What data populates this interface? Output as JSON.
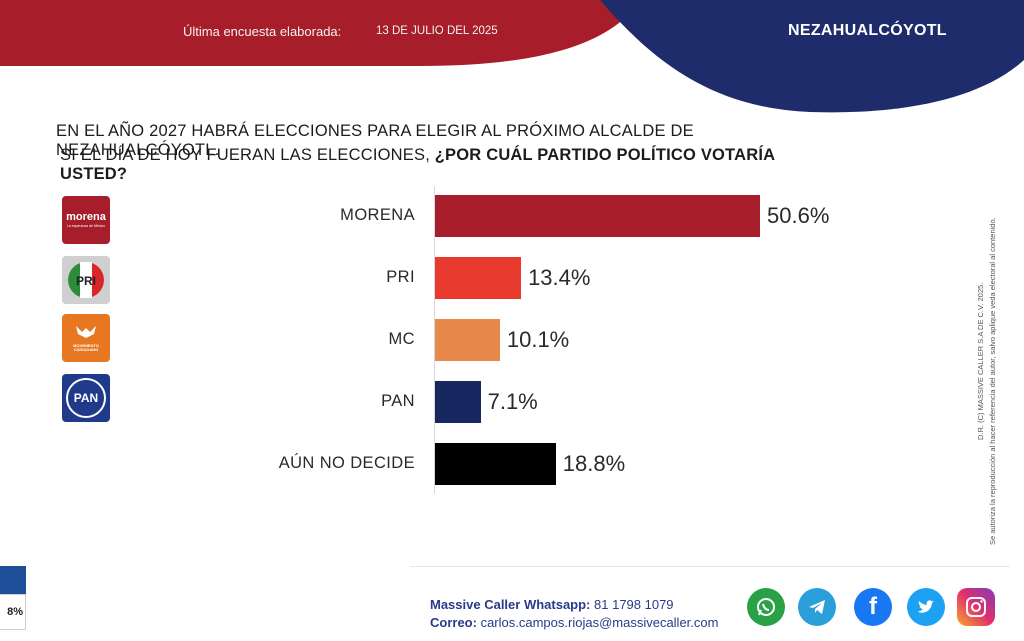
{
  "header": {
    "label": "Última encuesta elaborada:",
    "date": "13 DE JULIO DEL 2025",
    "city": "NEZAHUALCÓYOTL",
    "colors": {
      "red": "#a71d2a",
      "navy": "#1f2c6b"
    }
  },
  "question": {
    "line1": "EN EL AÑO 2027 HABRÁ ELECCIONES PARA ELEGIR AL PRÓXIMO ALCALDE DE NEZAHUALCÓYOTL.",
    "line2_plain": "SI EL DÍA DE HOY FUERAN LAS ELECCIONES, ",
    "line2_bold": "¿POR CUÁL PARTIDO POLÍTICO VOTARÍA USTED?"
  },
  "logos": [
    {
      "icon": "morena-logo",
      "text": "morena",
      "subtext": "La esperanza de México",
      "color": "#a71d2a"
    },
    {
      "icon": "pri-logo",
      "text": "PRI",
      "color": "#2e8b3a"
    },
    {
      "icon": "mc-logo",
      "text": "MOVIMIENTO CIUDADANO",
      "color": "#e87722"
    },
    {
      "icon": "pan-logo",
      "text": "PAN",
      "color": "#1f3a8a"
    }
  ],
  "chart_data": {
    "type": "bar",
    "orientation": "horizontal",
    "categories": [
      "MORENA",
      "PRI",
      "MC",
      "PAN",
      "AÚN NO DECIDE"
    ],
    "values": [
      50.6,
      13.4,
      10.1,
      7.1,
      18.8
    ],
    "value_labels": [
      "50.6%",
      "13.4%",
      "10.1%",
      "7.1%",
      "18.8%"
    ],
    "colors": [
      "#a71d2a",
      "#e8392e",
      "#e6894a",
      "#17275f",
      "#000000"
    ],
    "unit": "%",
    "xlim": [
      0,
      50.6
    ],
    "grid": false,
    "legend": "none"
  },
  "side_note": {
    "line1": "D.R. (C) MASSIVE CALLER S.A DE C.V. 2025.",
    "line2": "Se autoriza la reproducción al hacer referencia del autor, salvo aplique veda electoral al contenido."
  },
  "footer": {
    "whatsapp_label": "Massive Caller Whatsapp:",
    "whatsapp_number": "81 1798 1079",
    "email_label": "Correo:",
    "email": "carlos.campos.riojas@massivecaller.com",
    "social": [
      "whatsapp-icon",
      "telegram-icon",
      "facebook-icon",
      "twitter-icon",
      "instagram-icon"
    ]
  },
  "left_fragment": {
    "text": "8%"
  }
}
